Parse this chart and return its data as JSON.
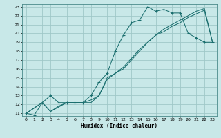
{
  "title": "",
  "xlabel": "Humidex (Indice chaleur)",
  "bg_color": "#c8e8e8",
  "grid_color": "#a0c8c8",
  "line_color": "#1a6e6e",
  "xlim": [
    -0.5,
    23.5
  ],
  "ylim": [
    10.7,
    23.3
  ],
  "xticks": [
    0,
    1,
    2,
    3,
    4,
    5,
    6,
    7,
    8,
    9,
    10,
    11,
    12,
    13,
    14,
    15,
    16,
    17,
    18,
    19,
    20,
    21,
    22,
    23
  ],
  "yticks": [
    11,
    12,
    13,
    14,
    15,
    16,
    17,
    18,
    19,
    20,
    21,
    22,
    23
  ],
  "series_a_x": [
    0,
    1,
    2,
    3,
    4,
    5,
    6,
    7,
    8,
    9,
    10,
    11,
    12,
    13,
    14,
    15,
    16,
    17,
    18,
    19,
    20,
    21,
    22,
    23
  ],
  "series_a_y": [
    11,
    10.8,
    12.2,
    13.0,
    12.2,
    12.2,
    12.2,
    12.2,
    13.0,
    14.5,
    15.5,
    18.0,
    19.8,
    21.2,
    21.5,
    23.0,
    22.5,
    22.7,
    22.3,
    22.3,
    20.0,
    19.5,
    19.0,
    19.0
  ],
  "series_b_x": [
    0,
    2,
    3,
    4,
    5,
    6,
    7,
    8,
    9,
    10,
    11,
    12,
    13,
    14,
    15,
    16,
    17,
    18,
    19,
    20,
    21,
    22,
    23
  ],
  "series_b_y": [
    11,
    12.2,
    11.2,
    11.8,
    12.2,
    12.2,
    12.2,
    12.5,
    13.0,
    15.0,
    15.5,
    16.0,
    17.0,
    18.0,
    19.0,
    19.8,
    20.5,
    21.0,
    21.5,
    22.0,
    22.5,
    22.8,
    19.0
  ],
  "series_c_x": [
    0,
    2,
    3,
    5,
    6,
    7,
    8,
    9,
    10,
    11,
    12,
    13,
    14,
    15,
    16,
    17,
    18,
    19,
    20,
    21,
    22,
    23
  ],
  "series_c_y": [
    11,
    12.2,
    11.2,
    12.2,
    12.2,
    12.2,
    12.2,
    13.0,
    14.8,
    15.5,
    16.2,
    17.2,
    18.2,
    19.0,
    19.8,
    20.2,
    20.8,
    21.2,
    21.8,
    22.2,
    22.6,
    19.0
  ]
}
